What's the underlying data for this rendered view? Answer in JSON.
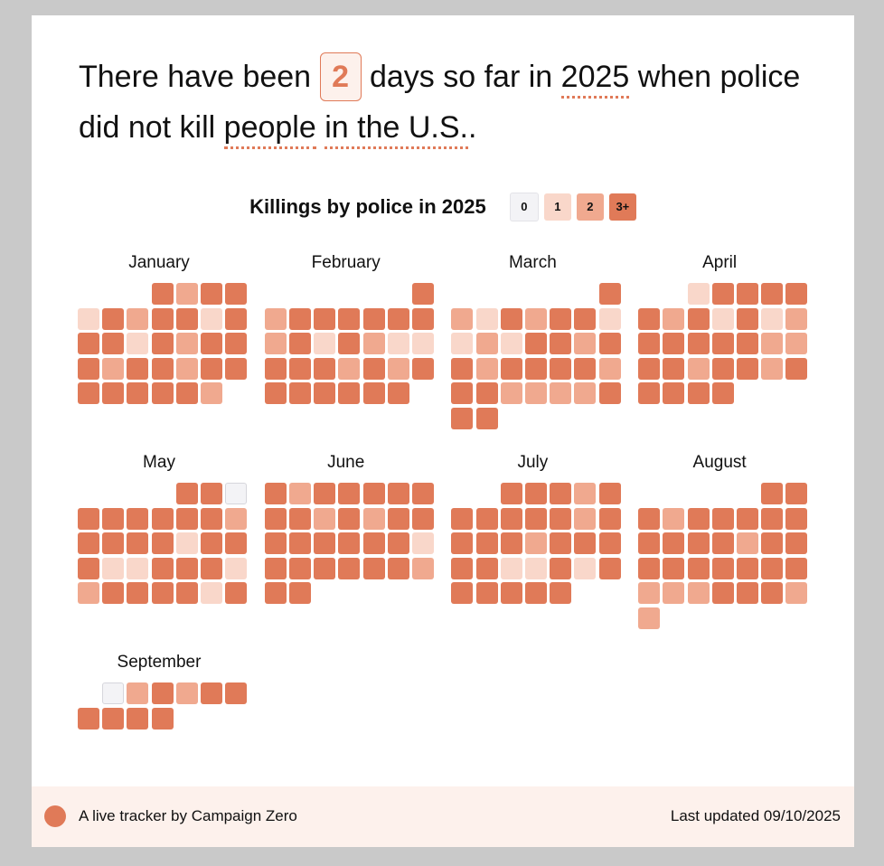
{
  "headline": {
    "prefix": "There have been",
    "count": 2,
    "middle": "days so far in",
    "year": "2025",
    "connector": "when police did not kill",
    "subject": "people",
    "place": "in the U.S.",
    "period": "."
  },
  "legend": {
    "title": "Killings by police in 2025",
    "items": [
      {
        "value": 0,
        "label": "0",
        "color": "#f3f3f6"
      },
      {
        "value": 1,
        "label": "1",
        "color": "#f9d7ca"
      },
      {
        "value": 2,
        "label": "2",
        "color": "#f0a98f"
      },
      {
        "value": 3,
        "label": "3+",
        "color": "#e07a58"
      }
    ]
  },
  "months": [
    {
      "name": "January",
      "days": [
        3,
        2,
        3,
        3,
        1,
        3,
        2,
        3,
        3,
        1,
        3,
        3,
        3,
        1,
        3,
        2,
        3,
        3,
        3,
        2,
        3,
        3,
        2,
        3,
        3,
        3,
        3,
        3,
        3,
        3,
        2
      ]
    },
    {
      "name": "February",
      "days": [
        3,
        2,
        3,
        3,
        3,
        3,
        3,
        3,
        2,
        3,
        1,
        3,
        2,
        1,
        1,
        3,
        3,
        3,
        2,
        3,
        2,
        3,
        3,
        3,
        3,
        3,
        3,
        3
      ]
    },
    {
      "name": "March",
      "days": [
        3,
        2,
        1,
        3,
        2,
        3,
        3,
        1,
        1,
        2,
        1,
        3,
        3,
        2,
        3,
        3,
        2,
        3,
        3,
        3,
        3,
        2,
        3,
        3,
        2,
        2,
        2,
        2,
        3,
        3,
        3
      ]
    },
    {
      "name": "April",
      "days": [
        1,
        3,
        3,
        3,
        3,
        3,
        2,
        3,
        1,
        3,
        1,
        2,
        3,
        3,
        3,
        3,
        3,
        2,
        2,
        3,
        3,
        2,
        3,
        3,
        2,
        3,
        3,
        3,
        3,
        3
      ]
    },
    {
      "name": "May",
      "days": [
        3,
        3,
        0,
        3,
        3,
        3,
        3,
        3,
        3,
        2,
        3,
        3,
        3,
        3,
        1,
        3,
        3,
        3,
        1,
        1,
        3,
        3,
        3,
        1,
        2,
        3,
        3,
        3,
        3,
        1,
        3
      ]
    },
    {
      "name": "June",
      "days": [
        3,
        2,
        3,
        3,
        3,
        3,
        3,
        3,
        3,
        2,
        3,
        2,
        3,
        3,
        3,
        3,
        3,
        3,
        3,
        3,
        1,
        3,
        3,
        3,
        3,
        3,
        3,
        2,
        3,
        3
      ]
    },
    {
      "name": "July",
      "days": [
        3,
        3,
        3,
        2,
        3,
        3,
        3,
        3,
        3,
        3,
        2,
        3,
        3,
        3,
        3,
        2,
        3,
        3,
        3,
        3,
        3,
        1,
        1,
        3,
        1,
        3,
        3,
        3,
        3,
        3,
        3
      ]
    },
    {
      "name": "August",
      "days": [
        3,
        3,
        3,
        2,
        3,
        3,
        3,
        3,
        3,
        3,
        3,
        3,
        3,
        2,
        3,
        3,
        3,
        3,
        3,
        3,
        3,
        3,
        3,
        2,
        2,
        2,
        3,
        3,
        3,
        2,
        2
      ]
    },
    {
      "name": "September",
      "days": [
        0,
        2,
        3,
        2,
        3,
        3,
        3,
        3,
        3,
        3
      ]
    }
  ],
  "footer": {
    "credit": "A live tracker by Campaign Zero",
    "updated": "Last updated 09/10/2025"
  }
}
